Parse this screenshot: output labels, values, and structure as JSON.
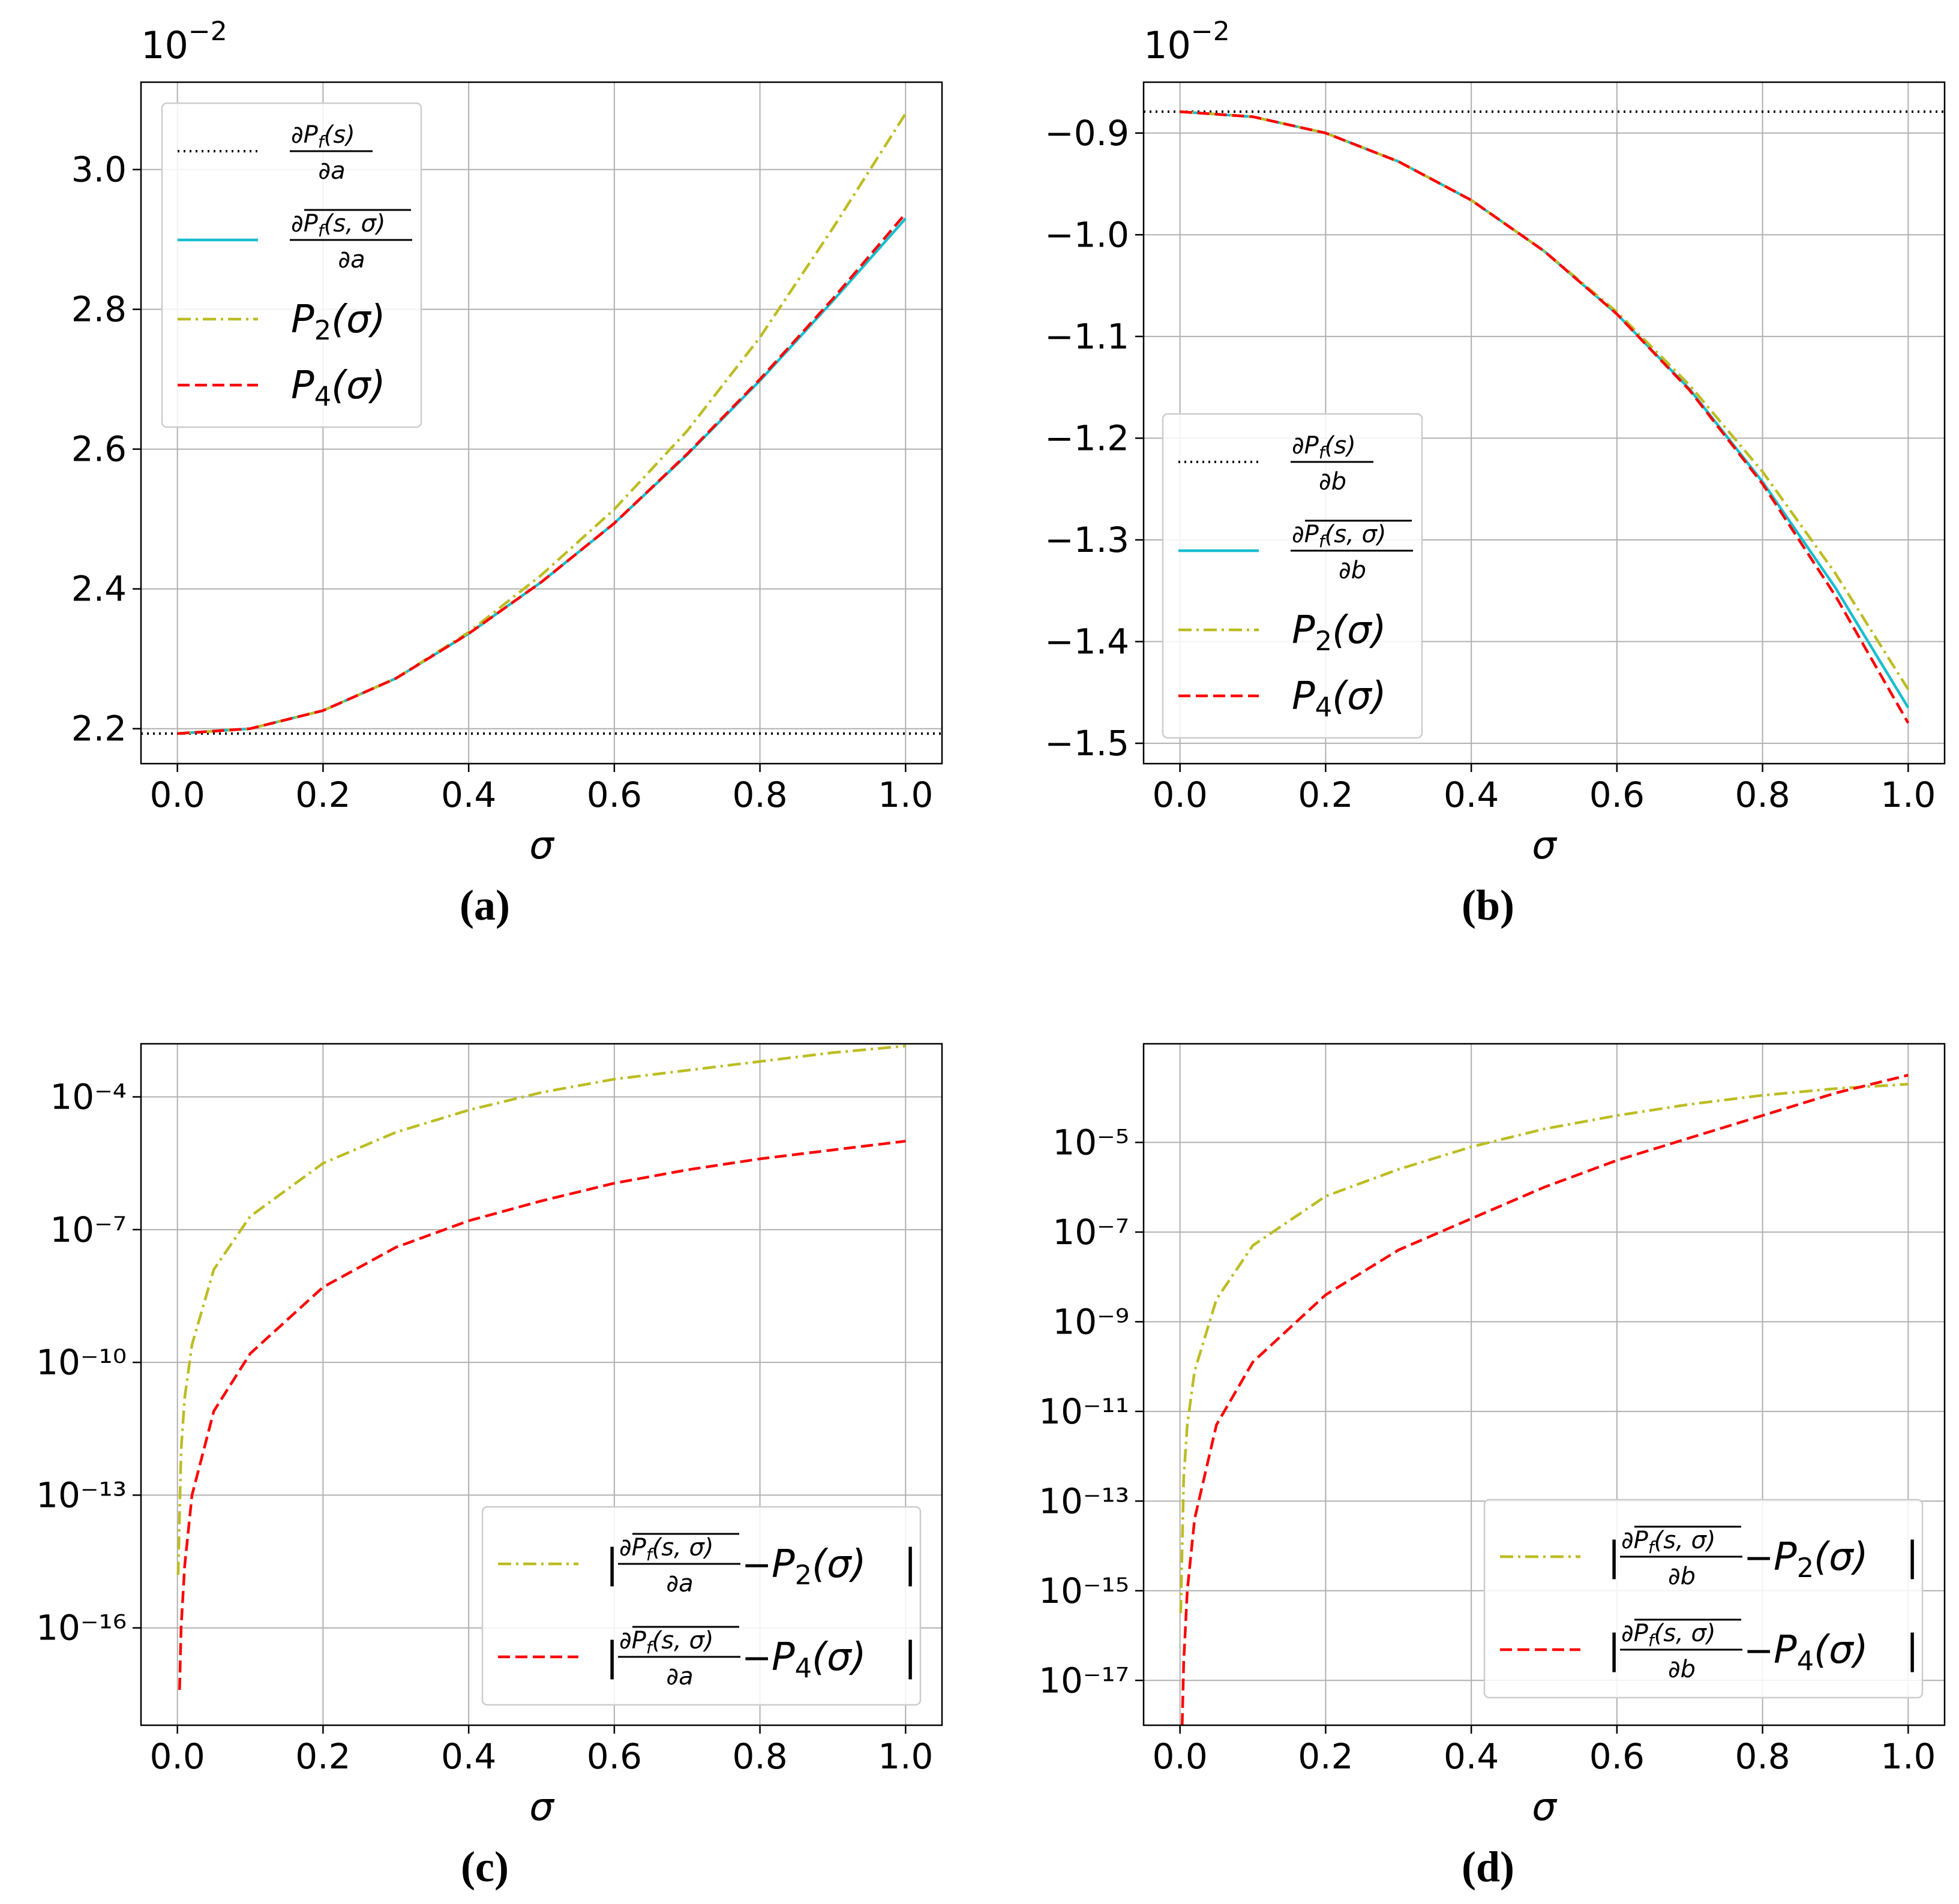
{
  "figure": {
    "panel_labels": [
      "(a)",
      "(b)",
      "(c)",
      "(d)"
    ]
  },
  "legend_entries": {
    "a": [
      "∂P_f(s)/∂a",
      "∂̅P_f(s,σ)/∂a",
      "P_2(σ)",
      "P_4(σ)"
    ],
    "b": [
      "∂P_f(s)/∂b",
      "∂̅P_f(s,σ)/∂b",
      "P_2(σ)",
      "P_4(σ)"
    ],
    "c": [
      "|∂̅P_f(s,σ)/∂a − P_2(σ)|",
      "|∂̅P_f(s,σ)/∂a − P_4(σ)|"
    ],
    "d": [
      "|∂̅P_f(s,σ)/∂b − P_2(σ)|",
      "|∂̅P_f(s,σ)/∂b − P_4(σ)|"
    ]
  },
  "colors": {
    "reference": "#000000",
    "exact": "#17becf",
    "P2": "#bcbd22",
    "P4": "#ff0000",
    "grid": "#b0b0b0"
  },
  "chart_data": [
    {
      "id": "a",
      "type": "line",
      "panel_label": "(a)",
      "xlabel": "σ",
      "ylabel": "",
      "offset_text": "10⁻²",
      "xlim": [
        -0.05,
        1.05
      ],
      "ylim": [
        2.15,
        3.125
      ],
      "xticks": [
        0.0,
        0.2,
        0.4,
        0.6,
        0.8,
        1.0
      ],
      "xtick_labels": [
        "0.0",
        "0.2",
        "0.4",
        "0.6",
        "0.8",
        "1.0"
      ],
      "yticks": [
        2.2,
        2.4,
        2.6,
        2.8,
        3.0
      ],
      "ytick_labels": [
        "2.2",
        "2.4",
        "2.6",
        "2.8",
        "3.0"
      ],
      "grid": true,
      "legend_position": "upper-left",
      "x": [
        0,
        0.1,
        0.2,
        0.3,
        0.4,
        0.5,
        0.6,
        0.7,
        0.8,
        0.9,
        1.0
      ],
      "series": [
        {
          "key": "reference",
          "style": "dotted",
          "hline": 2.193,
          "hline_xlim": [
            -0.05,
            1.05
          ]
        },
        {
          "key": "exact",
          "style": "solid",
          "values": [
            2.193,
            2.2,
            2.226,
            2.272,
            2.336,
            2.41,
            2.494,
            2.592,
            2.698,
            2.812,
            2.93
          ]
        },
        {
          "key": "P2",
          "style": "dashdot",
          "values": [
            2.193,
            2.2,
            2.226,
            2.272,
            2.338,
            2.42,
            2.514,
            2.626,
            2.76,
            2.916,
            3.08
          ]
        },
        {
          "key": "P4",
          "style": "dashed",
          "values": [
            2.193,
            2.2,
            2.226,
            2.272,
            2.336,
            2.41,
            2.494,
            2.593,
            2.7,
            2.815,
            2.937
          ]
        }
      ]
    },
    {
      "id": "b",
      "type": "line",
      "panel_label": "(b)",
      "xlabel": "σ",
      "ylabel": "",
      "offset_text": "10⁻²",
      "xlim": [
        -0.05,
        1.05
      ],
      "ylim": [
        -1.52,
        -0.85
      ],
      "xticks": [
        0.0,
        0.2,
        0.4,
        0.6,
        0.8,
        1.0
      ],
      "xtick_labels": [
        "0.0",
        "0.2",
        "0.4",
        "0.6",
        "0.8",
        "1.0"
      ],
      "yticks": [
        -1.5,
        -1.4,
        -1.3,
        -1.2,
        -1.1,
        -1.0,
        -0.9
      ],
      "ytick_labels": [
        "−1.5",
        "−1.4",
        "−1.3",
        "−1.2",
        "−1.1",
        "−1.0",
        "−0.9"
      ],
      "grid": true,
      "legend_position": "center-left",
      "x": [
        0,
        0.1,
        0.2,
        0.3,
        0.4,
        0.5,
        0.6,
        0.7,
        0.8,
        0.9,
        1.0
      ],
      "series": [
        {
          "key": "reference",
          "style": "dotted",
          "hline": -0.879,
          "hline_xlim": [
            -0.05,
            1.05
          ]
        },
        {
          "key": "exact",
          "style": "solid",
          "values": [
            -0.879,
            -0.884,
            -0.9,
            -0.928,
            -0.966,
            -1.016,
            -1.078,
            -1.152,
            -1.243,
            -1.347,
            -1.465
          ]
        },
        {
          "key": "P2",
          "style": "dashdot",
          "values": [
            -0.879,
            -0.884,
            -0.9,
            -0.928,
            -0.966,
            -1.016,
            -1.076,
            -1.148,
            -1.233,
            -1.333,
            -1.447
          ]
        },
        {
          "key": "P4",
          "style": "dashed",
          "values": [
            -0.879,
            -0.884,
            -0.9,
            -0.928,
            -0.966,
            -1.016,
            -1.078,
            -1.153,
            -1.245,
            -1.355,
            -1.48
          ]
        }
      ]
    },
    {
      "id": "c",
      "type": "line",
      "panel_label": "(c)",
      "xlabel": "σ",
      "ylabel": "",
      "yscale": "log",
      "xlim": [
        -0.05,
        1.05
      ],
      "ylim_exp": [
        -18.2,
        -2.8
      ],
      "xticks": [
        0.0,
        0.2,
        0.4,
        0.6,
        0.8,
        1.0
      ],
      "xtick_labels": [
        "0.0",
        "0.2",
        "0.4",
        "0.6",
        "0.8",
        "1.0"
      ],
      "ytick_exponents": [
        -16,
        -13,
        -10,
        -7,
        -4
      ],
      "ytick_labels": [
        "10⁻¹⁶",
        "10⁻¹³",
        "10⁻¹⁰",
        "10⁻⁷",
        "10⁻⁴"
      ],
      "grid": true,
      "legend_position": "lower-right",
      "series": [
        {
          "key": "P2",
          "style": "dashdot",
          "x": [
            0.001,
            0.005,
            0.01,
            0.02,
            0.05,
            0.1,
            0.2,
            0.3,
            0.4,
            0.5,
            0.6,
            0.7,
            0.8,
            0.9,
            1.0
          ],
          "log10_values": [
            -14.8,
            -12.0,
            -10.8,
            -9.6,
            -7.9,
            -6.7,
            -5.5,
            -4.8,
            -4.3,
            -3.9,
            -3.6,
            -3.4,
            -3.2,
            -3.0,
            -2.85
          ]
        },
        {
          "key": "P4",
          "style": "dashed",
          "x": [
            0.003,
            0.005,
            0.01,
            0.02,
            0.05,
            0.1,
            0.2,
            0.3,
            0.4,
            0.5,
            0.6,
            0.7,
            0.8,
            0.9,
            1.0
          ],
          "log10_values": [
            -17.4,
            -16.0,
            -14.6,
            -13.0,
            -11.1,
            -9.8,
            -8.3,
            -7.4,
            -6.8,
            -6.35,
            -5.95,
            -5.65,
            -5.4,
            -5.2,
            -5.0
          ]
        }
      ]
    },
    {
      "id": "d",
      "type": "line",
      "panel_label": "(d)",
      "xlabel": "σ",
      "ylabel": "",
      "yscale": "log",
      "xlim": [
        -0.05,
        1.05
      ],
      "ylim_exp": [
        -18.0,
        -2.8
      ],
      "xticks": [
        0.0,
        0.2,
        0.4,
        0.6,
        0.8,
        1.0
      ],
      "xtick_labels": [
        "0.0",
        "0.2",
        "0.4",
        "0.6",
        "0.8",
        "1.0"
      ],
      "ytick_exponents": [
        -17,
        -15,
        -13,
        -11,
        -9,
        -7,
        -5
      ],
      "ytick_labels": [
        "10⁻¹⁷",
        "10⁻¹⁵",
        "10⁻¹³",
        "10⁻¹¹",
        "10⁻⁹",
        "10⁻⁷",
        "10⁻⁵"
      ],
      "grid": true,
      "legend_position": "lower-right",
      "series": [
        {
          "key": "P2",
          "style": "dashdot",
          "x": [
            0.001,
            0.005,
            0.01,
            0.02,
            0.05,
            0.1,
            0.2,
            0.3,
            0.4,
            0.5,
            0.6,
            0.7,
            0.8,
            0.9,
            1.0
          ],
          "log10_values": [
            -15.5,
            -12.5,
            -11.3,
            -10.1,
            -8.5,
            -7.3,
            -6.2,
            -5.6,
            -5.1,
            -4.7,
            -4.4,
            -4.15,
            -3.95,
            -3.8,
            -3.7
          ]
        },
        {
          "key": "P4",
          "style": "dashed",
          "x": [
            0.003,
            0.005,
            0.01,
            0.02,
            0.05,
            0.1,
            0.2,
            0.3,
            0.4,
            0.5,
            0.6,
            0.7,
            0.8,
            0.9,
            1.0
          ],
          "log10_values": [
            -18.0,
            -16.6,
            -15.0,
            -13.4,
            -11.3,
            -9.9,
            -8.4,
            -7.4,
            -6.7,
            -6.0,
            -5.4,
            -4.9,
            -4.4,
            -3.9,
            -3.5
          ]
        }
      ]
    }
  ]
}
